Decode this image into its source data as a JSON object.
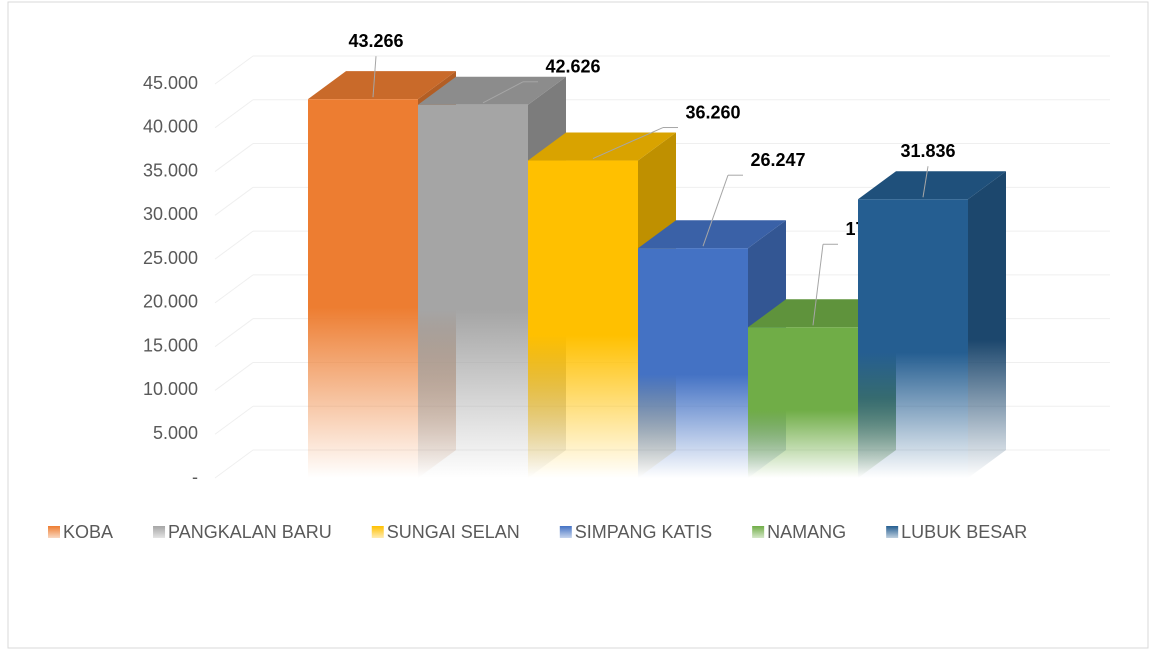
{
  "chart_data": {
    "type": "bar",
    "series": [
      {
        "name": "KOBA",
        "color": "#ED7D31",
        "values": [
          43266
        ],
        "value_labels": [
          "43.266"
        ]
      },
      {
        "name": "PANGKALAN BARU",
        "color": "#A5A5A5",
        "values": [
          42626
        ],
        "value_labels": [
          "42.626"
        ]
      },
      {
        "name": "SUNGAI SELAN",
        "color": "#FFC000",
        "values": [
          36260
        ],
        "value_labels": [
          "36.260"
        ]
      },
      {
        "name": "SIMPANG KATIS",
        "color": "#4472C4",
        "values": [
          26247
        ],
        "value_labels": [
          "26.247"
        ]
      },
      {
        "name": "NAMANG",
        "color": "#70AD47",
        "values": [
          17217
        ],
        "value_labels": [
          "17.217"
        ]
      },
      {
        "name": "LUBUK BESAR",
        "color": "#255E91",
        "values": [
          31836
        ],
        "value_labels": [
          "31.836"
        ]
      }
    ],
    "ylim": [
      0,
      45000
    ],
    "yticks": [
      {
        "value": 0,
        "label": "-"
      },
      {
        "value": 5000,
        "label": "5.000"
      },
      {
        "value": 10000,
        "label": "10.000"
      },
      {
        "value": 15000,
        "label": "15.000"
      },
      {
        "value": 20000,
        "label": "20.000"
      },
      {
        "value": 25000,
        "label": "25.000"
      },
      {
        "value": 30000,
        "label": "30.000"
      },
      {
        "value": 35000,
        "label": "35.000"
      },
      {
        "value": 40000,
        "label": "40.000"
      },
      {
        "value": 45000,
        "label": "45.000"
      }
    ],
    "grid": true,
    "legend": "bottom"
  }
}
